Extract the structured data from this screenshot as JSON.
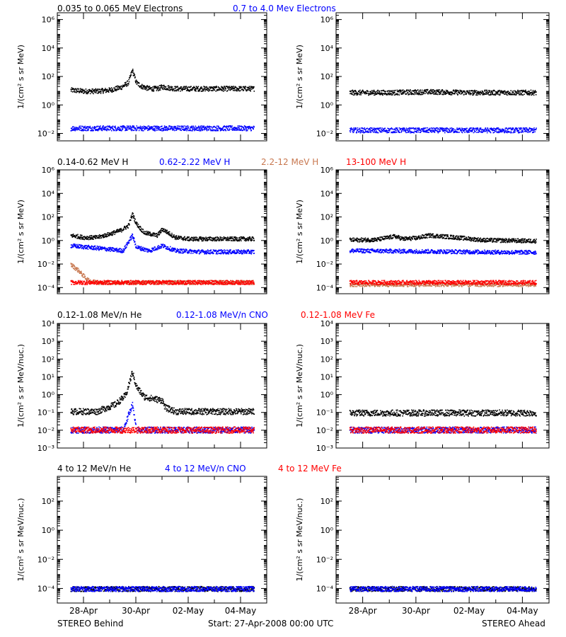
{
  "footer": {
    "left": "STEREO Behind",
    "center": "Start: 27-Apr-2008 00:00 UTC",
    "right": "STEREO Ahead"
  },
  "x_ticks": [
    "28-Apr",
    "30-Apr",
    "02-May",
    "04-May"
  ],
  "colors": {
    "black": "#000000",
    "blue": "#0000ff",
    "brown": "#c87850",
    "red": "#ff0000"
  },
  "chart_data": [
    {
      "type": "scatter",
      "row": 1,
      "panel": "STEREO Behind",
      "ylabel": "1/(cm² s sr MeV)",
      "ylog": true,
      "ylim": [
        0.003,
        3000000
      ],
      "ytick_exponents": [
        -2,
        0,
        2,
        4,
        6
      ],
      "legend": [
        {
          "name": "0.035 to 0.065 MeV Electrons",
          "color": "#000000"
        },
        {
          "name": "0.7 to 4.0 Mev Electrons",
          "color": "#0000ff"
        }
      ],
      "series": [
        {
          "name": "0.035 to 0.065 MeV Electrons",
          "color": "#000000",
          "x": [
            27.5,
            28.0,
            28.5,
            29.0,
            29.4,
            29.7,
            29.85,
            30.0,
            30.2,
            30.5,
            30.8,
            31.0,
            31.5,
            32.0,
            33.0,
            34.0,
            34.5
          ],
          "y": [
            12,
            10,
            10,
            12,
            18,
            40,
            300,
            40,
            22,
            15,
            15,
            20,
            15,
            15,
            15,
            15,
            15
          ]
        },
        {
          "name": "0.7 to 4.0 Mev Electrons",
          "color": "#0000ff",
          "x": [
            27.5,
            29.0,
            30.5,
            32.0,
            33.5,
            34.5
          ],
          "y": [
            0.025,
            0.025,
            0.025,
            0.025,
            0.025,
            0.025
          ]
        }
      ]
    },
    {
      "type": "scatter",
      "row": 1,
      "panel": "STEREO Ahead",
      "ylabel": "1/(cm² s sr MeV)",
      "ylog": true,
      "ylim": [
        0.003,
        3000000
      ],
      "ytick_exponents": [
        -2,
        0,
        2,
        4,
        6
      ],
      "series": [
        {
          "name": "0.035 to 0.065 MeV Electrons",
          "color": "#000000",
          "x": [
            27.5,
            29.0,
            30.5,
            32.0,
            33.5,
            34.5
          ],
          "y": [
            8,
            8,
            9,
            8,
            8,
            8
          ]
        },
        {
          "name": "0.7 to 4.0 Mev Electrons",
          "color": "#0000ff",
          "x": [
            27.5,
            29.0,
            30.5,
            32.0,
            33.5,
            34.5
          ],
          "y": [
            0.018,
            0.018,
            0.018,
            0.018,
            0.018,
            0.018
          ]
        }
      ]
    },
    {
      "type": "scatter",
      "row": 2,
      "panel": "STEREO Behind",
      "ylabel": "1/(cm² s sr MeV)",
      "ylog": true,
      "ylim": [
        3e-05,
        1000000
      ],
      "ytick_exponents": [
        -4,
        -2,
        0,
        2,
        4,
        6
      ],
      "legend": [
        {
          "name": "0.14-0.62 MeV H",
          "color": "#000000"
        },
        {
          "name": "0.62-2.22 MeV H",
          "color": "#0000ff"
        },
        {
          "name": "2.2-12 MeV H",
          "color": "#c87850"
        },
        {
          "name": "13-100 MeV H",
          "color": "#ff0000"
        }
      ],
      "series": [
        {
          "name": "0.14-0.62 MeV H",
          "color": "#000000",
          "x": [
            27.5,
            28.0,
            28.5,
            29.0,
            29.4,
            29.7,
            29.85,
            30.0,
            30.3,
            30.8,
            31.0,
            31.5,
            32.0,
            33.0,
            34.0,
            34.5
          ],
          "y": [
            3,
            2,
            2,
            4,
            8,
            20,
            200,
            30,
            5,
            3,
            10,
            2,
            1.5,
            1.5,
            1.5,
            1.5
          ]
        },
        {
          "name": "0.62-2.22 MeV H",
          "color": "#0000ff",
          "x": [
            27.5,
            28.5,
            29.5,
            29.85,
            30.0,
            30.5,
            31.0,
            31.5,
            32.5,
            34.5
          ],
          "y": [
            0.4,
            0.25,
            0.15,
            3,
            0.3,
            0.15,
            0.4,
            0.15,
            0.12,
            0.12
          ]
        },
        {
          "name": "2.2-12 MeV H",
          "color": "#c87850",
          "x": [
            27.5,
            27.8,
            28.0,
            28.2,
            28.6,
            29.5,
            31.0,
            32.5,
            34.5
          ],
          "y": [
            0.01,
            0.003,
            0.001,
            0.0004,
            0.0003,
            0.0003,
            0.0003,
            0.0003,
            0.0003
          ]
        },
        {
          "name": "13-100 MeV H",
          "color": "#ff0000",
          "x": [
            27.5,
            29.0,
            30.5,
            32.0,
            33.5,
            34.5
          ],
          "y": [
            0.0003,
            0.0003,
            0.0003,
            0.0003,
            0.0003,
            0.0003
          ]
        }
      ]
    },
    {
      "type": "scatter",
      "row": 2,
      "panel": "STEREO Ahead",
      "ylabel": "1/(cm² s sr MeV)",
      "ylog": true,
      "ylim": [
        3e-05,
        1000000
      ],
      "ytick_exponents": [
        -4,
        -2,
        0,
        2,
        4,
        6
      ],
      "series": [
        {
          "name": "0.14-0.62 MeV H",
          "color": "#000000",
          "x": [
            27.5,
            28.5,
            29.2,
            29.5,
            30.0,
            30.5,
            31.5,
            32.5,
            34.5
          ],
          "y": [
            1.2,
            1.3,
            2.5,
            1.5,
            1.8,
            3,
            2,
            1.2,
            1.0
          ]
        },
        {
          "name": "0.62-2.22 MeV H",
          "color": "#0000ff",
          "x": [
            27.5,
            29.0,
            30.5,
            32.0,
            33.5,
            34.5
          ],
          "y": [
            0.15,
            0.14,
            0.13,
            0.12,
            0.11,
            0.11
          ]
        },
        {
          "name": "2.2-12 MeV H",
          "color": "#c87850",
          "x": [
            27.5,
            29.0,
            30.5,
            32.0,
            33.5,
            34.5
          ],
          "y": [
            0.0002,
            0.0002,
            0.0002,
            0.0002,
            0.0002,
            0.0002
          ]
        },
        {
          "name": "13-100 MeV H",
          "color": "#ff0000",
          "x": [
            27.5,
            29.0,
            30.5,
            32.0,
            33.5,
            34.5
          ],
          "y": [
            0.0003,
            0.0003,
            0.0003,
            0.0003,
            0.0003,
            0.0003
          ]
        }
      ]
    },
    {
      "type": "scatter",
      "row": 3,
      "panel": "STEREO Behind",
      "ylabel": "1/(cm² s sr MeV/nuc.)",
      "ylog": true,
      "ylim": [
        0.001,
        10000
      ],
      "ytick_exponents": [
        -3,
        -2,
        -1,
        0,
        1,
        2,
        3,
        4
      ],
      "legend": [
        {
          "name": "0.12-1.08 MeV/n He",
          "color": "#000000"
        },
        {
          "name": "0.12-1.08 MeV/n CNO",
          "color": "#0000ff"
        },
        {
          "name": "0.12-1.08 MeV Fe",
          "color": "#ff0000"
        }
      ],
      "series": [
        {
          "name": "0.12-1.08 MeV/n He",
          "color": "#000000",
          "x": [
            27.5,
            28.5,
            29.2,
            29.6,
            29.85,
            30.0,
            30.3,
            31.0,
            31.1,
            31.5,
            32.5,
            34.5
          ],
          "y": [
            0.12,
            0.12,
            0.3,
            1,
            20,
            3,
            0.8,
            0.5,
            0.2,
            0.12,
            0.12,
            0.12
          ]
        },
        {
          "name": "0.12-1.08 MeV/n CNO",
          "color": "#0000ff",
          "x": [
            27.5,
            29.5,
            29.85,
            30.0,
            31.0,
            32.5,
            34.5
          ],
          "y": [
            0.011,
            0.011,
            0.3,
            0.011,
            0.011,
            0.011,
            0.011
          ]
        },
        {
          "name": "0.12-1.08 MeV Fe",
          "color": "#ff0000",
          "x": [
            27.5,
            29.0,
            30.5,
            32.0,
            33.5,
            34.5
          ],
          "y": [
            0.011,
            0.011,
            0.011,
            0.011,
            0.011,
            0.011
          ]
        }
      ]
    },
    {
      "type": "scatter",
      "row": 3,
      "panel": "STEREO Ahead",
      "ylabel": "1/(cm² s sr MeV/nuc.)",
      "ylog": true,
      "ylim": [
        0.001,
        10000
      ],
      "ytick_exponents": [
        -3,
        -2,
        -1,
        0,
        1,
        2,
        3,
        4
      ],
      "series": [
        {
          "name": "0.12-1.08 MeV/n He",
          "color": "#000000",
          "x": [
            27.5,
            29.0,
            30.5,
            32.0,
            33.5,
            34.5
          ],
          "y": [
            0.1,
            0.1,
            0.1,
            0.1,
            0.1,
            0.1
          ]
        },
        {
          "name": "0.12-1.08 MeV/n CNO",
          "color": "#0000ff",
          "x": [
            27.5,
            29.0,
            30.5,
            32.0,
            33.5,
            34.5
          ],
          "y": [
            0.011,
            0.011,
            0.011,
            0.011,
            0.011,
            0.011
          ]
        },
        {
          "name": "0.12-1.08 MeV Fe",
          "color": "#ff0000",
          "x": [
            27.5,
            29.0,
            30.5,
            32.0,
            33.5,
            34.5
          ],
          "y": [
            0.011,
            0.011,
            0.011,
            0.011,
            0.011,
            0.011
          ]
        }
      ]
    },
    {
      "type": "scatter",
      "row": 4,
      "panel": "STEREO Behind",
      "ylabel": "1/(cm² s sr MeV/nuc.)",
      "ylog": true,
      "ylim": [
        1e-05,
        5000
      ],
      "ytick_exponents": [
        -4,
        -2,
        0,
        2
      ],
      "legend": [
        {
          "name": "4 to 12 MeV/n He",
          "color": "#000000"
        },
        {
          "name": "4 to 12 MeV/n CNO",
          "color": "#0000ff"
        },
        {
          "name": "4 to 12 MeV Fe",
          "color": "#ff0000"
        }
      ],
      "series": [
        {
          "name": "4 to 12 MeV/n He",
          "color": "#000000",
          "x": [
            27.5,
            29.0,
            30.5,
            32.0,
            33.5,
            34.5
          ],
          "y": [
            0.0001,
            0.0001,
            0.0001,
            0.0001,
            0.0001,
            0.0001
          ]
        },
        {
          "name": "4 to 12 MeV/n CNO",
          "color": "#0000ff",
          "x": [
            27.5,
            29.0,
            30.5,
            32.0,
            33.5,
            34.5
          ],
          "y": [
            0.0001,
            0.0001,
            0.0001,
            0.0001,
            0.0001,
            0.0001
          ]
        }
      ]
    },
    {
      "type": "scatter",
      "row": 4,
      "panel": "STEREO Ahead",
      "ylabel": "1/(cm² s sr MeV/nuc.)",
      "ylog": true,
      "ylim": [
        1e-05,
        5000
      ],
      "ytick_exponents": [
        -4,
        -2,
        0,
        2
      ],
      "series": [
        {
          "name": "4 to 12 MeV/n He",
          "color": "#000000",
          "x": [
            27.5,
            29.0,
            30.5,
            32.0,
            33.5,
            34.5
          ],
          "y": [
            0.0001,
            0.0001,
            0.0001,
            0.0001,
            0.0001,
            0.0001
          ]
        },
        {
          "name": "4 to 12 MeV/n CNO",
          "color": "#0000ff",
          "x": [
            27.5,
            29.0,
            30.5,
            32.0,
            33.5,
            34.5
          ],
          "y": [
            0.0001,
            0.0001,
            0.0001,
            0.0001,
            0.0001,
            0.0001
          ]
        }
      ]
    }
  ]
}
